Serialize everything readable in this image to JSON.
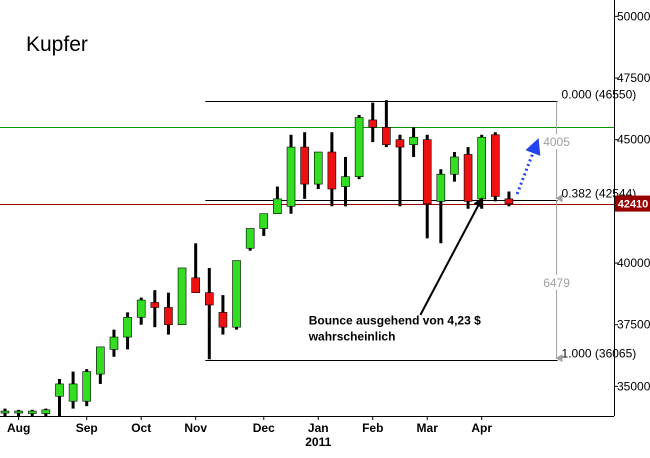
{
  "chart_data": {
    "type": "candlestick",
    "title": "Kupfer",
    "xlabel": "",
    "ylabel": "",
    "ylim": [
      33800,
      50500
    ],
    "y_ticks": [
      35000,
      37500,
      40000,
      42500,
      45000,
      47500,
      50000
    ],
    "y_axis_side": "right",
    "grid": false,
    "x_ticks": [
      {
        "label": "Aug",
        "i": 1
      },
      {
        "label": "Sep",
        "i": 6
      },
      {
        "label": "Oct",
        "i": 10
      },
      {
        "label": "Nov",
        "i": 14
      },
      {
        "label": "Dec",
        "i": 19
      },
      {
        "label": "Jan",
        "i": 23
      },
      {
        "label": "Feb",
        "i": 27
      },
      {
        "label": "Mar",
        "i": 31
      },
      {
        "label": "Apr",
        "i": 35
      }
    ],
    "year_label": {
      "label": "2011",
      "i": 23
    },
    "candles": [
      {
        "o": 34000,
        "h": 34100,
        "l": 33800,
        "c": 34000
      },
      {
        "o": 34000,
        "h": 34050,
        "l": 33800,
        "c": 34000
      },
      {
        "o": 33900,
        "h": 34050,
        "l": 33800,
        "c": 34000
      },
      {
        "o": 33900,
        "h": 34100,
        "l": 33800,
        "c": 34050
      },
      {
        "o": 34600,
        "h": 35300,
        "l": 33800,
        "c": 35100
      },
      {
        "o": 34400,
        "h": 35600,
        "l": 34100,
        "c": 35100
      },
      {
        "o": 34400,
        "h": 35700,
        "l": 34200,
        "c": 35600
      },
      {
        "o": 35500,
        "h": 36600,
        "l": 35100,
        "c": 36600
      },
      {
        "o": 36500,
        "h": 37300,
        "l": 36200,
        "c": 37000
      },
      {
        "o": 37000,
        "h": 38000,
        "l": 36500,
        "c": 37800
      },
      {
        "o": 37800,
        "h": 38600,
        "l": 37500,
        "c": 38500
      },
      {
        "o": 38400,
        "h": 38900,
        "l": 37400,
        "c": 38200
      },
      {
        "o": 38200,
        "h": 38800,
        "l": 37100,
        "c": 37500
      },
      {
        "o": 37500,
        "h": 39800,
        "l": 37500,
        "c": 39800
      },
      {
        "o": 39400,
        "h": 40800,
        "l": 38800,
        "c": 38800
      },
      {
        "o": 38800,
        "h": 39800,
        "l": 36100,
        "c": 38300
      },
      {
        "o": 38000,
        "h": 38700,
        "l": 37100,
        "c": 37400
      },
      {
        "o": 37400,
        "h": 40100,
        "l": 37300,
        "c": 40100
      },
      {
        "o": 40600,
        "h": 41400,
        "l": 40500,
        "c": 41400
      },
      {
        "o": 41400,
        "h": 42000,
        "l": 41100,
        "c": 42000
      },
      {
        "o": 42000,
        "h": 43100,
        "l": 42000,
        "c": 42600
      },
      {
        "o": 42300,
        "h": 45200,
        "l": 42000,
        "c": 44700
      },
      {
        "o": 44700,
        "h": 45300,
        "l": 42600,
        "c": 43200
      },
      {
        "o": 43200,
        "h": 44500,
        "l": 43000,
        "c": 44500
      },
      {
        "o": 44500,
        "h": 45300,
        "l": 42300,
        "c": 43000
      },
      {
        "o": 43100,
        "h": 44300,
        "l": 42300,
        "c": 43500
      },
      {
        "o": 43500,
        "h": 46000,
        "l": 43400,
        "c": 45900
      },
      {
        "o": 45800,
        "h": 46500,
        "l": 44900,
        "c": 45500
      },
      {
        "o": 45500,
        "h": 46600,
        "l": 44700,
        "c": 44800
      },
      {
        "o": 45000,
        "h": 45200,
        "l": 42300,
        "c": 44700
      },
      {
        "o": 44800,
        "h": 45500,
        "l": 44300,
        "c": 45100
      },
      {
        "o": 45000,
        "h": 45200,
        "l": 41000,
        "c": 42400
      },
      {
        "o": 42500,
        "h": 43800,
        "l": 40800,
        "c": 43600
      },
      {
        "o": 43600,
        "h": 44500,
        "l": 43300,
        "c": 44300
      },
      {
        "o": 44400,
        "h": 44700,
        "l": 42200,
        "c": 42500
      },
      {
        "o": 42600,
        "h": 45200,
        "l": 42200,
        "c": 45100
      },
      {
        "o": 45200,
        "h": 45300,
        "l": 42500,
        "c": 42700
      },
      {
        "o": 42600,
        "h": 42900,
        "l": 42300,
        "c": 42400
      }
    ],
    "colors": {
      "up": "#33dd22",
      "down": "#ee1111",
      "wick": "#000000",
      "green_line": "#009900",
      "red_line": "#990000",
      "price_box": "#990000",
      "range_line": "#a0a0a0",
      "arrow": "#2244ee"
    },
    "horizontal_lines": [
      {
        "value": 45500,
        "color": "#009900"
      },
      {
        "value": 42410,
        "color": "#990000"
      }
    ],
    "current_price": {
      "value": 42410,
      "label": "42410"
    },
    "fibonacci": {
      "start_i": 15,
      "end_i": 38,
      "levels": [
        {
          "value": 46550,
          "label": "0.000 (46550)",
          "line_color": "#000000"
        },
        {
          "value": 42544,
          "label": "0.382 (42544)",
          "line_color": "#000000"
        },
        {
          "value": 36065,
          "label": "1.000 (36065)",
          "line_color": "#000000"
        }
      ]
    },
    "ranges": [
      {
        "from": 46550,
        "to": 42544,
        "label": "4005",
        "label_value": 44900
      },
      {
        "from": 42544,
        "to": 36065,
        "label": "6479",
        "label_value": 39200
      }
    ],
    "annotation": {
      "lines": [
        "Bounce ausgehend von 4,23 $",
        "wahrscheinlich"
      ],
      "text_i": 22.3,
      "text_value": 37500,
      "arrow_from": {
        "i": 30.5,
        "value": 37900
      },
      "arrow_to": {
        "i": 35.0,
        "value": 42600
      }
    },
    "projection_arrow": {
      "from": {
        "i": 37.6,
        "value": 42800
      },
      "to": {
        "i": 39.1,
        "value": 44950
      }
    }
  }
}
